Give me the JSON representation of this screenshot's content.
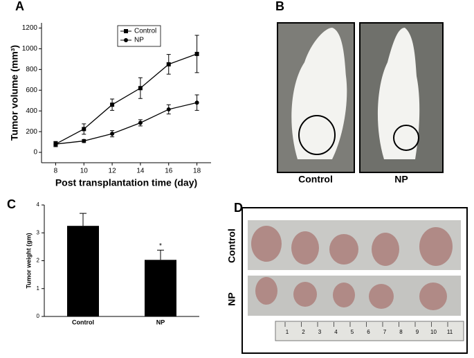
{
  "chart_data": [
    {
      "type": "line",
      "label": "A",
      "x_label": "Post transplantation time (day)",
      "y_label": "Tumor volume (mm³)",
      "x": [
        8,
        10,
        12,
        14,
        16,
        18
      ],
      "series": [
        {
          "name": "Control",
          "color": "#000000",
          "marker": "square",
          "values": [
            80,
            225,
            460,
            620,
            850,
            950
          ],
          "errors": [
            25,
            50,
            55,
            100,
            95,
            180
          ]
        },
        {
          "name": "NP",
          "color": "#000000",
          "marker": "circle",
          "values": [
            80,
            110,
            180,
            285,
            415,
            480
          ],
          "errors": [
            25,
            15,
            30,
            30,
            45,
            75
          ]
        }
      ],
      "xlim": [
        7,
        19
      ],
      "xticks": [
        8,
        10,
        12,
        14,
        16,
        18
      ],
      "ylim": [
        -100,
        1250
      ],
      "yticks": [
        0,
        200,
        400,
        600,
        800,
        1000,
        1200
      ],
      "legend": "upper left"
    },
    {
      "type": "bar",
      "label": "C",
      "y_label": "Tumor weight (gm)",
      "categories": [
        "Control",
        "NP"
      ],
      "values": [
        3.25,
        2.03
      ],
      "errors": [
        0.45,
        0.35
      ],
      "color": "#000000",
      "annotations": [
        "",
        "*"
      ],
      "ylim": [
        0,
        4
      ],
      "yticks": [
        0,
        1,
        2,
        3,
        4
      ]
    }
  ],
  "photo_panels": [
    {
      "label": "B",
      "captions": [
        "Control",
        "NP"
      ]
    },
    {
      "label": "D",
      "captions": [
        "Control",
        "NP"
      ],
      "ruler_labels": [
        "1",
        "2",
        "3",
        "4",
        "5",
        "6",
        "7",
        "8",
        "9",
        "10",
        "11"
      ]
    }
  ]
}
